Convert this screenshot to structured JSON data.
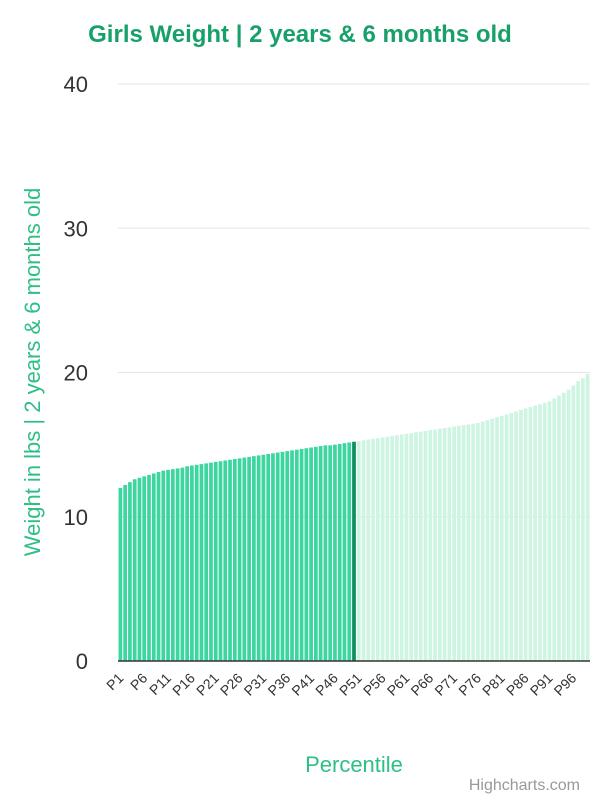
{
  "chart_data": {
    "type": "bar",
    "title": "Girls Weight | 2 years & 6 months old",
    "xlabel": "Percentile",
    "ylabel": "Weight in lbs | 2 years & 6 months old",
    "ylim": [
      0,
      40
    ],
    "yticks": [
      0,
      10,
      20,
      30,
      40
    ],
    "grid": true,
    "legend": "none",
    "highlight_category": "P50",
    "colors": {
      "title": "#18a06a",
      "axis_title": "#2fbf86",
      "bar_low": "#3dd69f",
      "bar_high": "#cdf5e2",
      "bar_highlight": "#0f8f5c",
      "grid": "#e6e6e6",
      "baseline": "#333333"
    },
    "categories": [
      "P1",
      "P2",
      "P3",
      "P4",
      "P5",
      "P6",
      "P7",
      "P8",
      "P9",
      "P10",
      "P11",
      "P12",
      "P13",
      "P14",
      "P15",
      "P16",
      "P17",
      "P18",
      "P19",
      "P20",
      "P21",
      "P22",
      "P23",
      "P24",
      "P25",
      "P26",
      "P27",
      "P28",
      "P29",
      "P30",
      "P31",
      "P32",
      "P33",
      "P34",
      "P35",
      "P36",
      "P37",
      "P38",
      "P39",
      "P40",
      "P41",
      "P42",
      "P43",
      "P44",
      "P45",
      "P46",
      "P47",
      "P48",
      "P49",
      "P50",
      "P51",
      "P52",
      "P53",
      "P54",
      "P55",
      "P56",
      "P57",
      "P58",
      "P59",
      "P60",
      "P61",
      "P62",
      "P63",
      "P64",
      "P65",
      "P66",
      "P67",
      "P68",
      "P69",
      "P70",
      "P71",
      "P72",
      "P73",
      "P74",
      "P75",
      "P76",
      "P77",
      "P78",
      "P79",
      "P80",
      "P81",
      "P82",
      "P83",
      "P84",
      "P85",
      "P86",
      "P87",
      "P88",
      "P89",
      "P90",
      "P91",
      "P92",
      "P93",
      "P94",
      "P95",
      "P96",
      "P97",
      "P98",
      "P99"
    ],
    "tick_labels": [
      "P1",
      "P6",
      "P11",
      "P16",
      "P21",
      "P26",
      "P31",
      "P36",
      "P41",
      "P46",
      "P51",
      "P56",
      "P61",
      "P66",
      "P71",
      "P76",
      "P81",
      "P86",
      "P91",
      "P96"
    ],
    "values": [
      12.0,
      12.2,
      12.4,
      12.6,
      12.7,
      12.8,
      12.9,
      13.0,
      13.1,
      13.2,
      13.25,
      13.3,
      13.35,
      13.4,
      13.5,
      13.55,
      13.6,
      13.65,
      13.7,
      13.75,
      13.8,
      13.85,
      13.9,
      13.95,
      14.0,
      14.05,
      14.1,
      14.15,
      14.2,
      14.25,
      14.3,
      14.35,
      14.4,
      14.45,
      14.5,
      14.55,
      14.6,
      14.65,
      14.7,
      14.75,
      14.8,
      14.85,
      14.9,
      14.95,
      14.95,
      15.0,
      15.05,
      15.1,
      15.15,
      15.2,
      15.25,
      15.3,
      15.35,
      15.4,
      15.45,
      15.5,
      15.55,
      15.6,
      15.65,
      15.7,
      15.75,
      15.8,
      15.85,
      15.9,
      15.95,
      16.0,
      16.05,
      16.1,
      16.15,
      16.2,
      16.25,
      16.3,
      16.35,
      16.4,
      16.45,
      16.5,
      16.6,
      16.7,
      16.8,
      16.9,
      17.0,
      17.1,
      17.2,
      17.3,
      17.4,
      17.5,
      17.6,
      17.7,
      17.8,
      17.9,
      18.0,
      18.2,
      18.4,
      18.6,
      18.8,
      19.1,
      19.4,
      19.6,
      19.9
    ]
  },
  "credits": "Highcharts.com"
}
